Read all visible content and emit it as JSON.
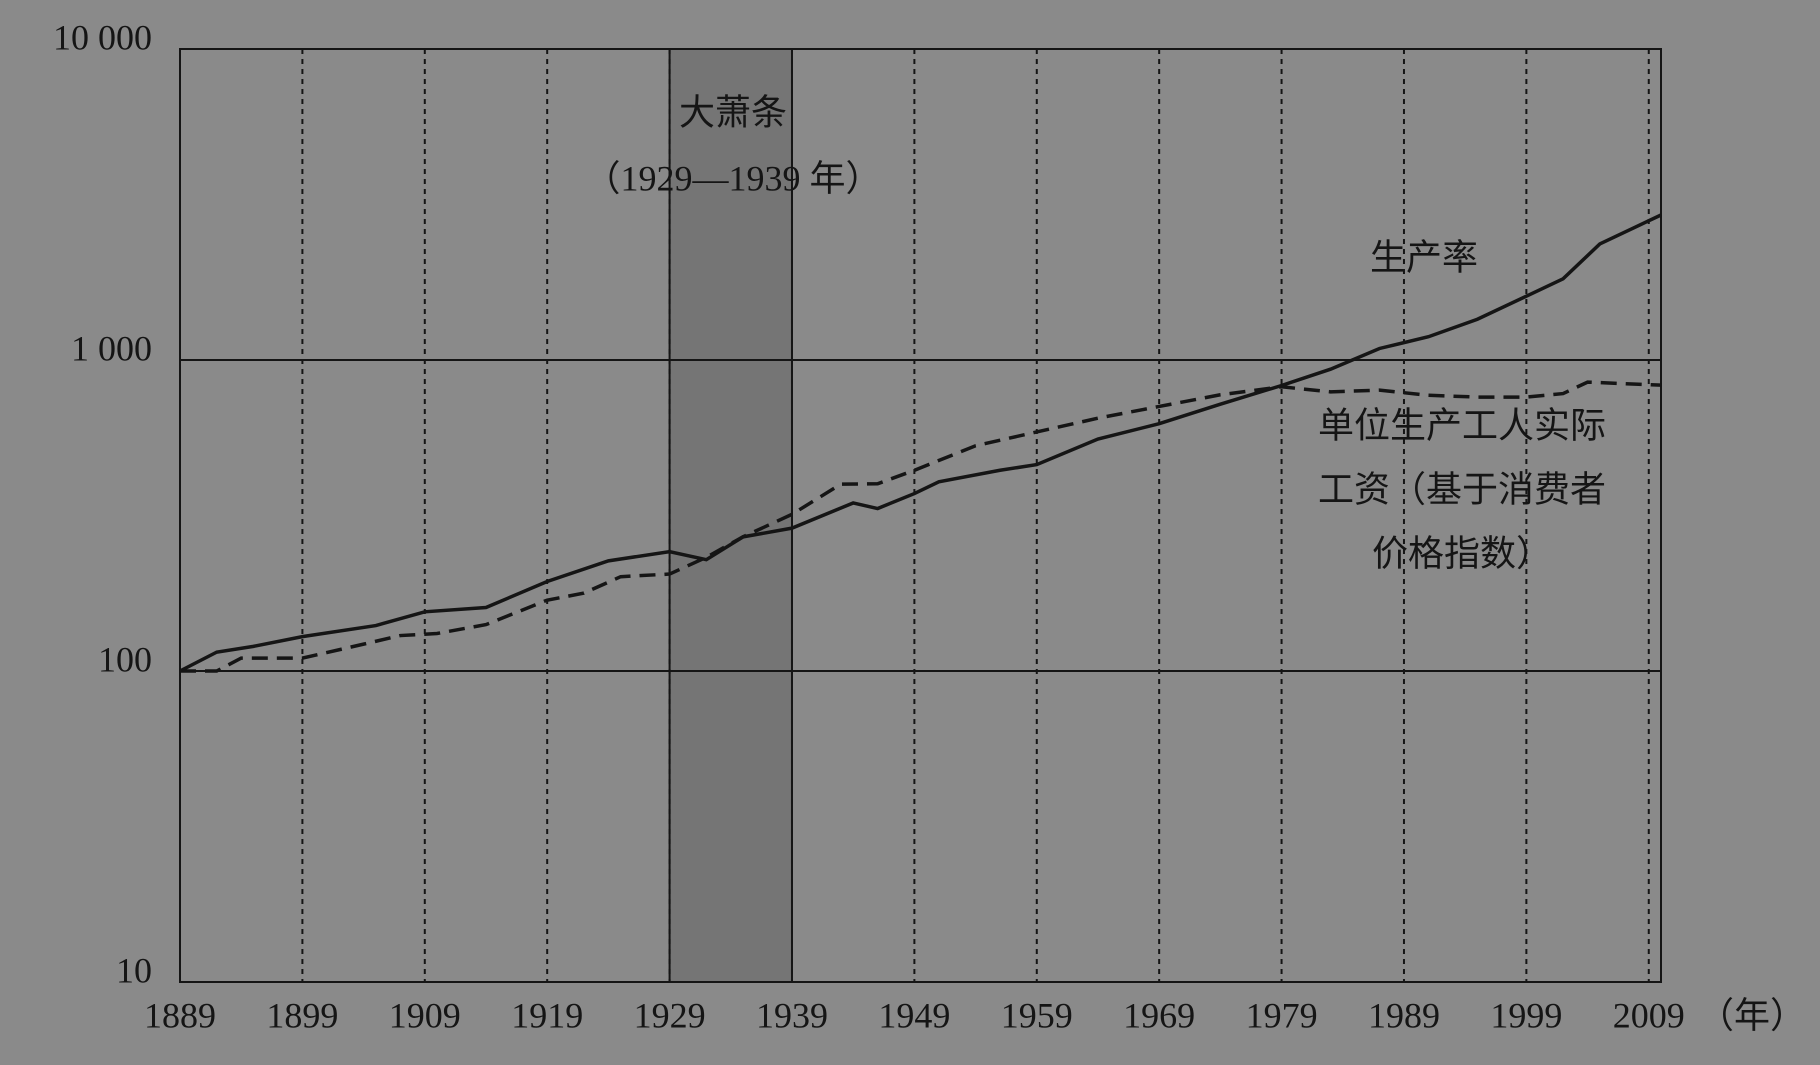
{
  "chart_data": {
    "type": "line",
    "xlim": [
      1889,
      2010
    ],
    "xticks": [
      1889,
      1899,
      1909,
      1919,
      1929,
      1939,
      1949,
      1959,
      1969,
      1979,
      1989,
      1999,
      2009
    ],
    "x_unit": "（年）",
    "ylim": [
      10,
      10000
    ],
    "log_y": true,
    "yticks": [
      10,
      100,
      {
        "value": 1000,
        "label": "1 000"
      },
      {
        "value": 10000,
        "label": "10 000"
      }
    ],
    "grid": true,
    "highlight": {
      "xlim": [
        1929,
        1939
      ],
      "color": "#757575",
      "label": "大萧条",
      "sublabel": "（1929—1939 年）"
    },
    "series": [
      {
        "name": "生产率",
        "color": "#151515",
        "dash": false,
        "x": [
          1889,
          1892,
          1895,
          1899,
          1905,
          1909,
          1914,
          1919,
          1924,
          1929,
          1932,
          1935,
          1939,
          1944,
          1946,
          1949,
          1951,
          1956,
          1959,
          1964,
          1969,
          1974,
          1979,
          1983,
          1987,
          1991,
          1995,
          1999,
          2002,
          2005,
          2008,
          2010
        ],
        "values": [
          100,
          115,
          120,
          129,
          140,
          155,
          160,
          194,
          226,
          242,
          228,
          270,
          288,
          347,
          333,
          372,
          406,
          442,
          461,
          557,
          624,
          721,
          828,
          934,
          1089,
          1188,
          1352,
          1604,
          1824,
          2361,
          2686,
          2926
        ]
      },
      {
        "name": [
          "单位生产工人实际",
          "工资（基于消费者",
          "价格指数）"
        ],
        "color": "#151515",
        "dash": true,
        "x": [
          1889,
          1892,
          1894,
          1899,
          1904,
          1907,
          1910,
          1914,
          1919,
          1922,
          1925,
          1929,
          1932,
          1935,
          1939,
          1943,
          1946,
          1949,
          1954,
          1959,
          1964,
          1969,
          1974,
          1979,
          1983,
          1987,
          1991,
          1995,
          1999,
          2002,
          2004,
          2010
        ],
        "values": [
          100,
          100,
          110,
          110,
          122,
          130,
          132,
          141,
          169,
          178,
          201,
          205,
          232,
          270,
          319,
          399,
          400,
          442,
          530,
          587,
          650,
          709,
          773,
          820,
          790,
          800,
          770,
          760,
          760,
          780,
          849,
          830
        ]
      }
    ]
  }
}
